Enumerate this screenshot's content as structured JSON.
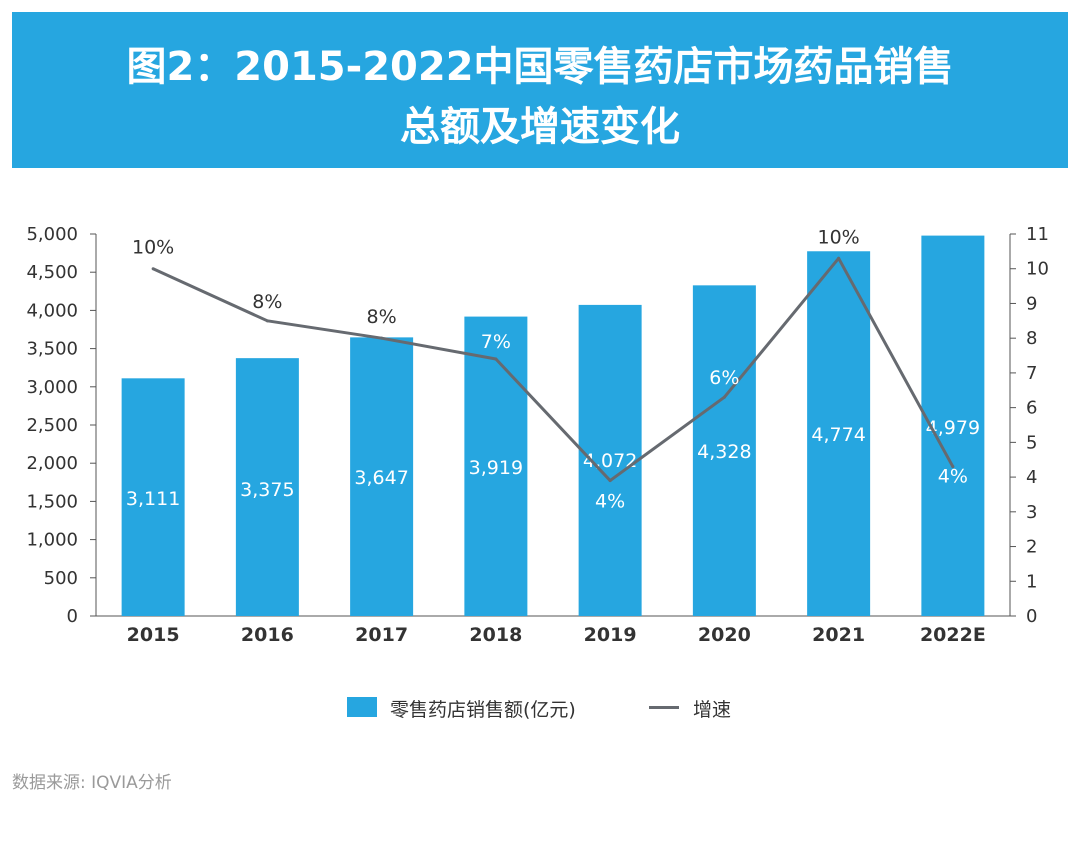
{
  "header": {
    "title_line1": "图2：2015-2022中国零售药店市场药品销售",
    "title_line2": "总额及增速变化"
  },
  "colors": {
    "bar": "#26a6e0",
    "line": "#666a70",
    "banner": "#26a6e0"
  },
  "chart_data": {
    "type": "bar",
    "categories": [
      "2015",
      "2016",
      "2017",
      "2018",
      "2019",
      "2020",
      "2021",
      "2022E"
    ],
    "series": [
      {
        "name": "零售药店销售额(亿元)",
        "type": "bar",
        "axis": "left",
        "values": [
          3111,
          3375,
          3647,
          3919,
          4072,
          4328,
          4774,
          4979
        ],
        "labels": [
          "3,111",
          "3,375",
          "3,647",
          "3,919",
          "4,072",
          "4,328",
          "4,774",
          "4,979"
        ]
      },
      {
        "name": "增速",
        "type": "line",
        "axis": "right",
        "values": [
          10.0,
          8.5,
          8.0,
          7.4,
          3.9,
          6.3,
          10.3,
          4.3
        ],
        "labels": [
          "10%",
          "8%",
          "8%",
          "7%",
          "4%",
          "6%",
          "10%",
          "4%"
        ]
      }
    ],
    "y_left": {
      "range": [
        0,
        5000
      ],
      "ticks": [
        "0",
        "500",
        "1,000",
        "1,500",
        "2,000",
        "2,500",
        "3,000",
        "3,500",
        "4,000",
        "4,500",
        "5,000"
      ]
    },
    "y_right": {
      "range": [
        0,
        11
      ],
      "ticks": [
        "0",
        "1",
        "2",
        "3",
        "4",
        "5",
        "6",
        "7",
        "8",
        "9",
        "10",
        "11"
      ]
    },
    "grid": false,
    "legend_position": "bottom"
  },
  "source": "数据来源: IQVIA分析"
}
